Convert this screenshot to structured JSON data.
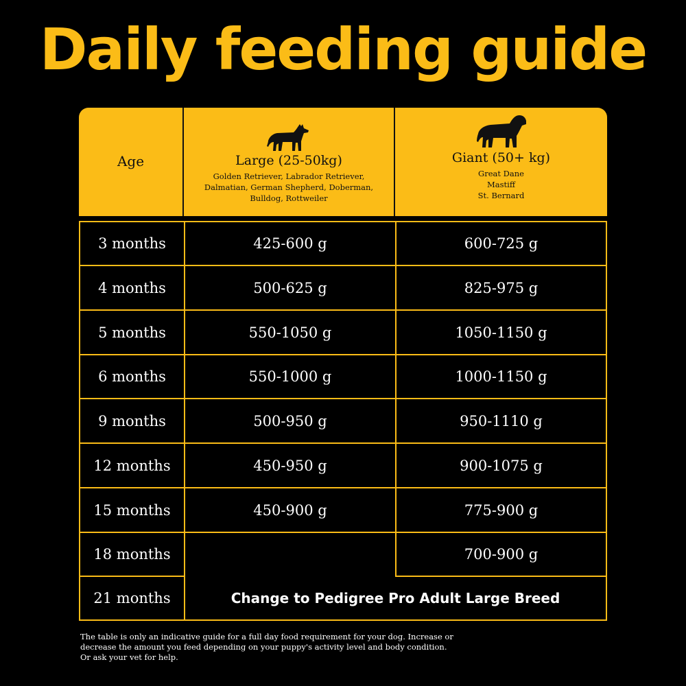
{
  "title": "Daily feeding guide",
  "header": {
    "age": "Age",
    "large": {
      "title": "Large (25-50kg)",
      "breeds": [
        "Golden Retriever, Labrador Retriever,",
        "Dalmatian, German Shepherd, Doberman,",
        "Bulldog, Rottweiler"
      ]
    },
    "giant": {
      "title": "Giant (50+ kg)",
      "breeds": [
        "Great Dane",
        "Mastiff",
        "St. Bernard"
      ]
    }
  },
  "rows": [
    {
      "age": "3 months",
      "large": "425-600 g",
      "giant": "600-725 g"
    },
    {
      "age": "4 months",
      "large": "500-625 g",
      "giant": "825-975 g"
    },
    {
      "age": "5 months",
      "large": "550-1050 g",
      "giant": "1050-1150 g"
    },
    {
      "age": "6 months",
      "large": "550-1000 g",
      "giant": "1000-1150 g"
    },
    {
      "age": "9 months",
      "large": "500-950 g",
      "giant": "950-1110 g"
    },
    {
      "age": "12 months",
      "large": "450-950 g",
      "giant": "900-1075 g"
    },
    {
      "age": "15 months",
      "large": "450-900 g",
      "giant": "775-900 g"
    },
    {
      "age": "18 months",
      "large": "",
      "giant": "700-900 g"
    },
    {
      "age": "21 months"
    }
  ],
  "change_note": "Change to Pedigree Pro Adult Large Breed",
  "footer": [
    "The table is only an indicative guide for a full day food requirement for your dog. Increase or",
    "decrease the amount you feed depending on your puppy's activity level and body condition.",
    "Or ask your vet for help."
  ],
  "colors": {
    "accent": "#fbbc17",
    "background": "#000000"
  },
  "icons": {
    "large": "large-dog-icon",
    "giant": "giant-dog-icon"
  }
}
